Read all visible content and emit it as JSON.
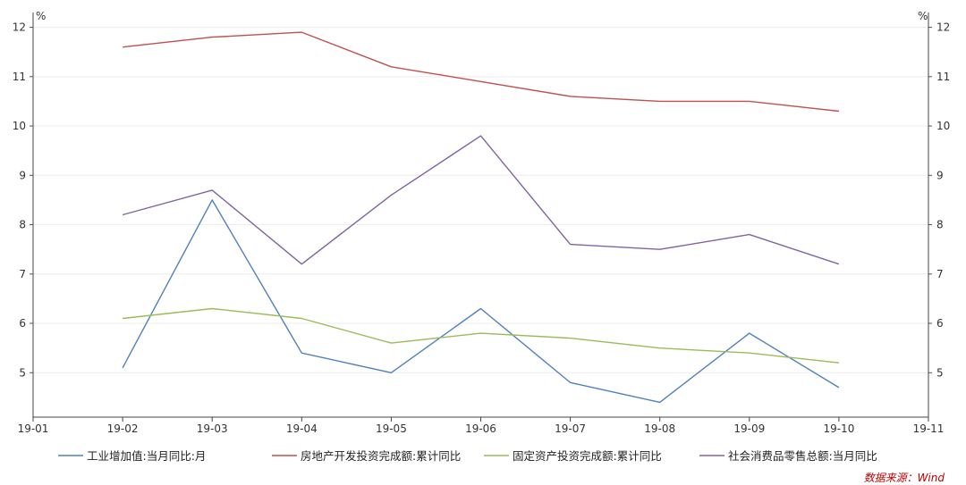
{
  "chart_data": {
    "type": "line",
    "x": [
      "19-01",
      "19-02",
      "19-03",
      "19-04",
      "19-05",
      "19-06",
      "19-07",
      "19-08",
      "19-09",
      "19-10",
      "19-11"
    ],
    "y_unit_left": "%",
    "y_unit_right": "%",
    "ylim": [
      4.1,
      12.3
    ],
    "yticks": [
      5,
      6,
      7,
      8,
      9,
      10,
      11,
      12
    ],
    "grid": true,
    "legend_position": "bottom",
    "series": [
      {
        "name": "工业增加值:当月同比:月",
        "color": "#4f81bd",
        "values": [
          null,
          5.1,
          8.5,
          5.4,
          5.0,
          6.3,
          4.8,
          4.4,
          5.8,
          4.7,
          null
        ]
      },
      {
        "name": "房地产开发投资完成额:累计同比",
        "color": "#c0504d",
        "values": [
          null,
          11.6,
          11.8,
          11.9,
          11.2,
          10.9,
          10.6,
          10.5,
          10.5,
          10.3,
          null
        ]
      },
      {
        "name": "固定资产投资完成额:累计同比",
        "color": "#9bbb59",
        "values": [
          null,
          6.1,
          6.3,
          6.1,
          5.6,
          5.8,
          5.7,
          5.5,
          5.4,
          5.2,
          null
        ]
      },
      {
        "name": "社会消费品零售总额:当月同比",
        "color": "#8064a2",
        "values": [
          null,
          8.2,
          8.7,
          7.2,
          8.6,
          9.8,
          7.6,
          7.5,
          7.8,
          7.2,
          null
        ]
      }
    ],
    "source": "数据来源：Wind"
  }
}
